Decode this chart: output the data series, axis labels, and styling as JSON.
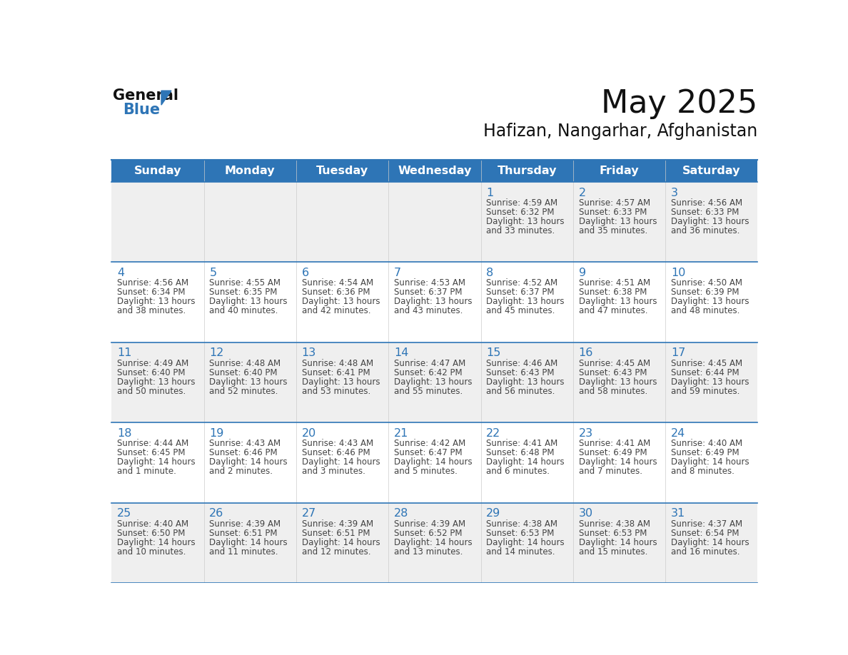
{
  "title": "May 2025",
  "subtitle": "Hafizan, Nangarhar, Afghanistan",
  "header_bg": "#2E75B6",
  "header_text_color": "#FFFFFF",
  "day_names": [
    "Sunday",
    "Monday",
    "Tuesday",
    "Wednesday",
    "Thursday",
    "Friday",
    "Saturday"
  ],
  "bg_color": "#FFFFFF",
  "row_alt_color": "#EFEFEF",
  "cell_border_color": "#2E75B6",
  "text_color": "#444444",
  "day_num_color": "#2E75B6",
  "days": [
    {
      "day": 1,
      "col": 4,
      "row": 0,
      "sunrise": "4:59 AM",
      "sunset": "6:32 PM",
      "dl_hours": "13",
      "dl_min": "33 minutes"
    },
    {
      "day": 2,
      "col": 5,
      "row": 0,
      "sunrise": "4:57 AM",
      "sunset": "6:33 PM",
      "dl_hours": "13",
      "dl_min": "35 minutes"
    },
    {
      "day": 3,
      "col": 6,
      "row": 0,
      "sunrise": "4:56 AM",
      "sunset": "6:33 PM",
      "dl_hours": "13",
      "dl_min": "36 minutes"
    },
    {
      "day": 4,
      "col": 0,
      "row": 1,
      "sunrise": "4:56 AM",
      "sunset": "6:34 PM",
      "dl_hours": "13",
      "dl_min": "38 minutes"
    },
    {
      "day": 5,
      "col": 1,
      "row": 1,
      "sunrise": "4:55 AM",
      "sunset": "6:35 PM",
      "dl_hours": "13",
      "dl_min": "40 minutes"
    },
    {
      "day": 6,
      "col": 2,
      "row": 1,
      "sunrise": "4:54 AM",
      "sunset": "6:36 PM",
      "dl_hours": "13",
      "dl_min": "42 minutes"
    },
    {
      "day": 7,
      "col": 3,
      "row": 1,
      "sunrise": "4:53 AM",
      "sunset": "6:37 PM",
      "dl_hours": "13",
      "dl_min": "43 minutes"
    },
    {
      "day": 8,
      "col": 4,
      "row": 1,
      "sunrise": "4:52 AM",
      "sunset": "6:37 PM",
      "dl_hours": "13",
      "dl_min": "45 minutes"
    },
    {
      "day": 9,
      "col": 5,
      "row": 1,
      "sunrise": "4:51 AM",
      "sunset": "6:38 PM",
      "dl_hours": "13",
      "dl_min": "47 minutes"
    },
    {
      "day": 10,
      "col": 6,
      "row": 1,
      "sunrise": "4:50 AM",
      "sunset": "6:39 PM",
      "dl_hours": "13",
      "dl_min": "48 minutes"
    },
    {
      "day": 11,
      "col": 0,
      "row": 2,
      "sunrise": "4:49 AM",
      "sunset": "6:40 PM",
      "dl_hours": "13",
      "dl_min": "50 minutes"
    },
    {
      "day": 12,
      "col": 1,
      "row": 2,
      "sunrise": "4:48 AM",
      "sunset": "6:40 PM",
      "dl_hours": "13",
      "dl_min": "52 minutes"
    },
    {
      "day": 13,
      "col": 2,
      "row": 2,
      "sunrise": "4:48 AM",
      "sunset": "6:41 PM",
      "dl_hours": "13",
      "dl_min": "53 minutes"
    },
    {
      "day": 14,
      "col": 3,
      "row": 2,
      "sunrise": "4:47 AM",
      "sunset": "6:42 PM",
      "dl_hours": "13",
      "dl_min": "55 minutes"
    },
    {
      "day": 15,
      "col": 4,
      "row": 2,
      "sunrise": "4:46 AM",
      "sunset": "6:43 PM",
      "dl_hours": "13",
      "dl_min": "56 minutes"
    },
    {
      "day": 16,
      "col": 5,
      "row": 2,
      "sunrise": "4:45 AM",
      "sunset": "6:43 PM",
      "dl_hours": "13",
      "dl_min": "58 minutes"
    },
    {
      "day": 17,
      "col": 6,
      "row": 2,
      "sunrise": "4:45 AM",
      "sunset": "6:44 PM",
      "dl_hours": "13",
      "dl_min": "59 minutes"
    },
    {
      "day": 18,
      "col": 0,
      "row": 3,
      "sunrise": "4:44 AM",
      "sunset": "6:45 PM",
      "dl_hours": "14",
      "dl_min": "1 minute"
    },
    {
      "day": 19,
      "col": 1,
      "row": 3,
      "sunrise": "4:43 AM",
      "sunset": "6:46 PM",
      "dl_hours": "14",
      "dl_min": "2 minutes"
    },
    {
      "day": 20,
      "col": 2,
      "row": 3,
      "sunrise": "4:43 AM",
      "sunset": "6:46 PM",
      "dl_hours": "14",
      "dl_min": "3 minutes"
    },
    {
      "day": 21,
      "col": 3,
      "row": 3,
      "sunrise": "4:42 AM",
      "sunset": "6:47 PM",
      "dl_hours": "14",
      "dl_min": "5 minutes"
    },
    {
      "day": 22,
      "col": 4,
      "row": 3,
      "sunrise": "4:41 AM",
      "sunset": "6:48 PM",
      "dl_hours": "14",
      "dl_min": "6 minutes"
    },
    {
      "day": 23,
      "col": 5,
      "row": 3,
      "sunrise": "4:41 AM",
      "sunset": "6:49 PM",
      "dl_hours": "14",
      "dl_min": "7 minutes"
    },
    {
      "day": 24,
      "col": 6,
      "row": 3,
      "sunrise": "4:40 AM",
      "sunset": "6:49 PM",
      "dl_hours": "14",
      "dl_min": "8 minutes"
    },
    {
      "day": 25,
      "col": 0,
      "row": 4,
      "sunrise": "4:40 AM",
      "sunset": "6:50 PM",
      "dl_hours": "14",
      "dl_min": "10 minutes"
    },
    {
      "day": 26,
      "col": 1,
      "row": 4,
      "sunrise": "4:39 AM",
      "sunset": "6:51 PM",
      "dl_hours": "14",
      "dl_min": "11 minutes"
    },
    {
      "day": 27,
      "col": 2,
      "row": 4,
      "sunrise": "4:39 AM",
      "sunset": "6:51 PM",
      "dl_hours": "14",
      "dl_min": "12 minutes"
    },
    {
      "day": 28,
      "col": 3,
      "row": 4,
      "sunrise": "4:39 AM",
      "sunset": "6:52 PM",
      "dl_hours": "14",
      "dl_min": "13 minutes"
    },
    {
      "day": 29,
      "col": 4,
      "row": 4,
      "sunrise": "4:38 AM",
      "sunset": "6:53 PM",
      "dl_hours": "14",
      "dl_min": "14 minutes"
    },
    {
      "day": 30,
      "col": 5,
      "row": 4,
      "sunrise": "4:38 AM",
      "sunset": "6:53 PM",
      "dl_hours": "14",
      "dl_min": "15 minutes"
    },
    {
      "day": 31,
      "col": 6,
      "row": 4,
      "sunrise": "4:37 AM",
      "sunset": "6:54 PM",
      "dl_hours": "14",
      "dl_min": "16 minutes"
    }
  ]
}
